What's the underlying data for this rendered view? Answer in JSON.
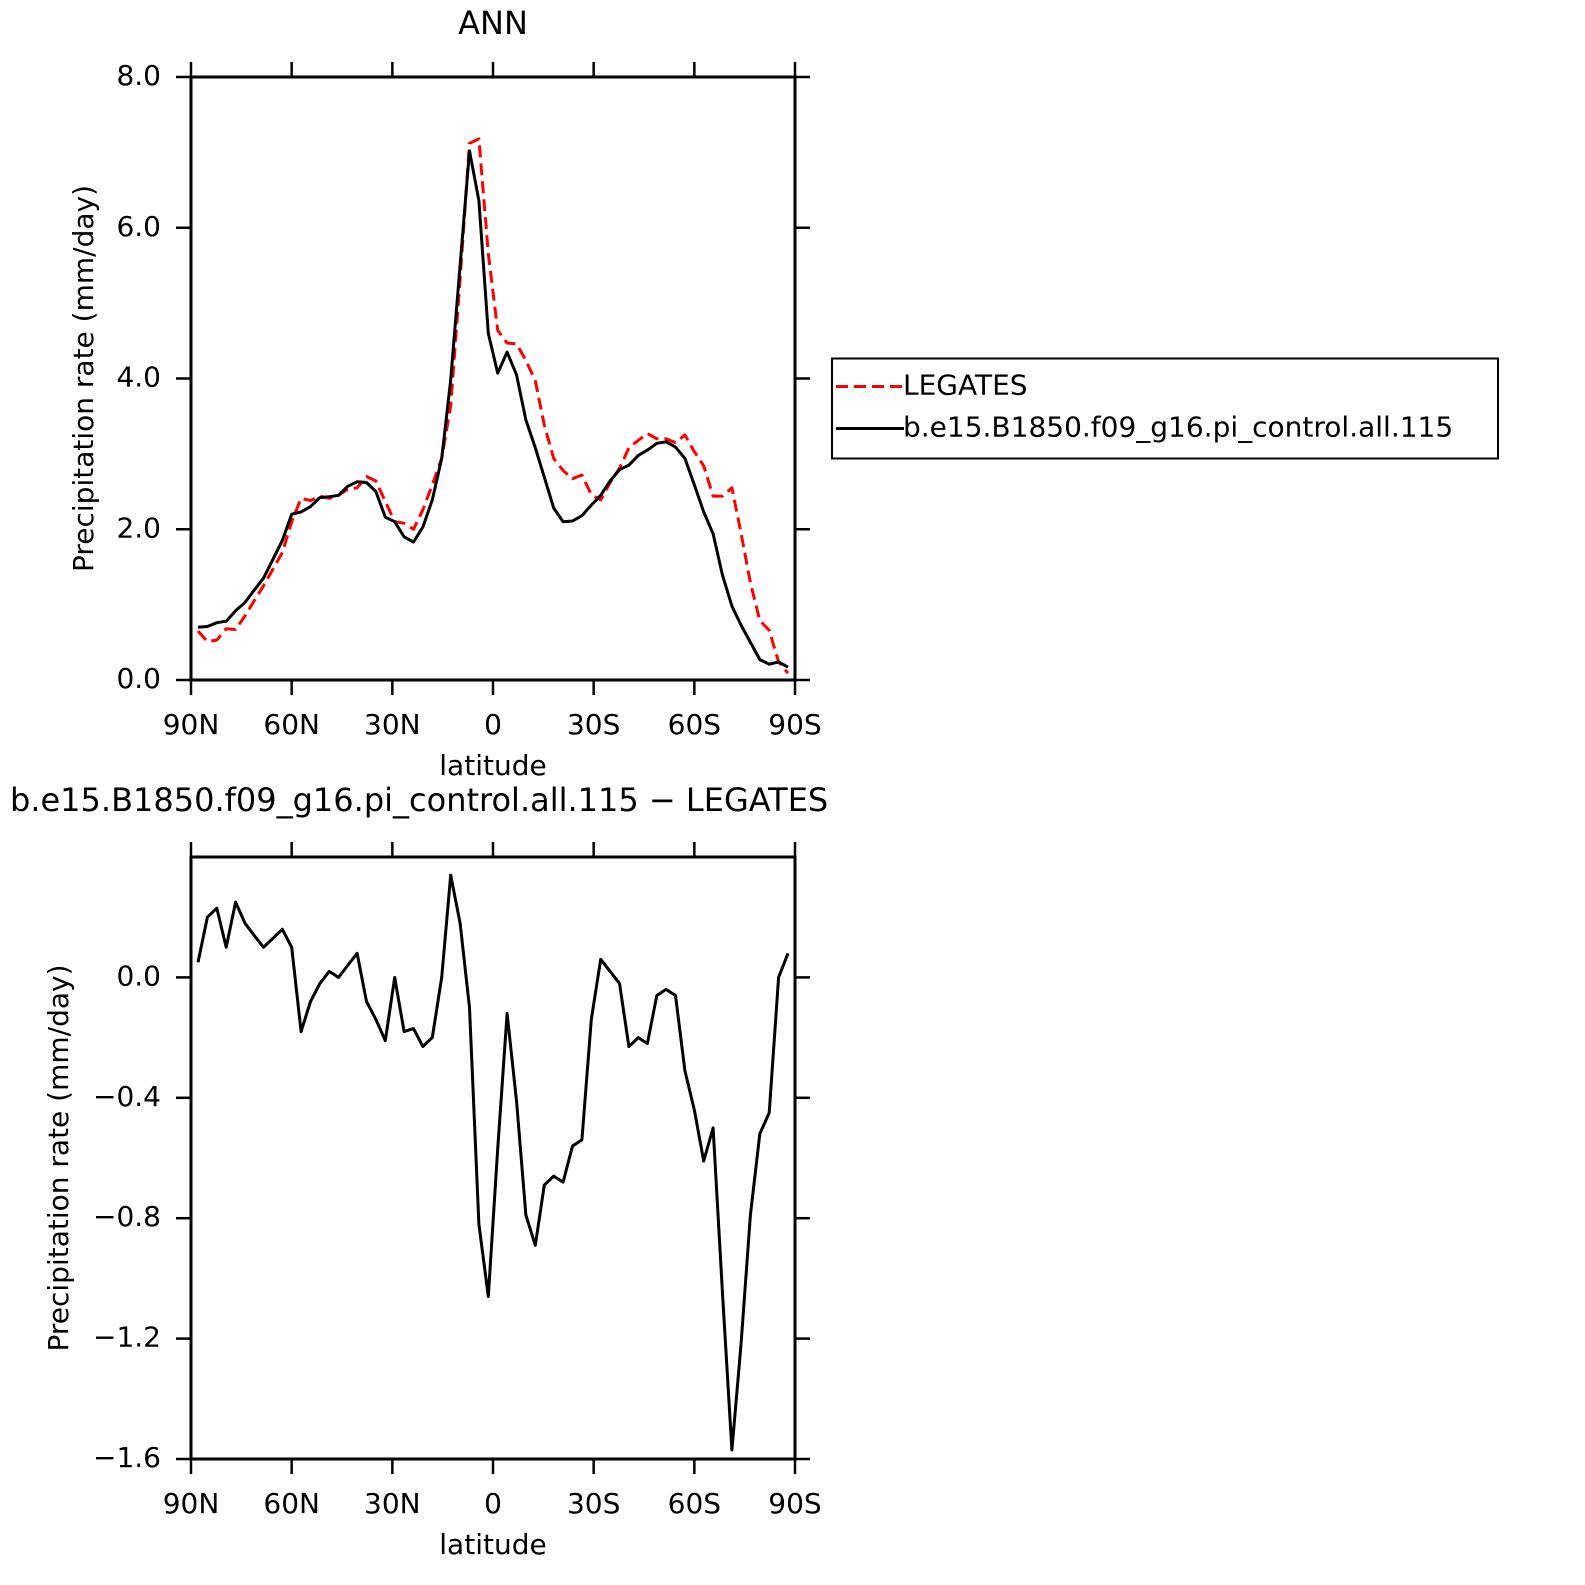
{
  "chart_data": [
    {
      "type": "line",
      "title": "ANN",
      "xlabel": "latitude",
      "ylabel": "Precipitation rate (mm/day)",
      "x": [
        87.9,
        85.1,
        82.3,
        79.5,
        76.7,
        73.9,
        71.2,
        68.4,
        65.6,
        62.8,
        60.0,
        57.2,
        54.4,
        51.6,
        48.8,
        46.0,
        43.3,
        40.5,
        37.7,
        34.9,
        32.1,
        29.3,
        26.5,
        23.7,
        20.9,
        18.1,
        15.3,
        12.6,
        9.8,
        7.0,
        4.2,
        1.4,
        -1.4,
        -4.2,
        -7.0,
        -9.8,
        -12.6,
        -15.3,
        -18.1,
        -20.9,
        -23.7,
        -26.5,
        -29.3,
        -32.1,
        -34.9,
        -37.7,
        -40.5,
        -43.3,
        -46.0,
        -48.8,
        -51.6,
        -54.4,
        -57.2,
        -60.0,
        -62.8,
        -65.6,
        -68.4,
        -71.2,
        -73.9,
        -76.7,
        -79.5,
        -82.3,
        -85.1,
        -87.9
      ],
      "series": [
        {
          "name": "LEGATES",
          "color": "#ff0000",
          "dashed": true,
          "values": [
            0.65,
            0.51,
            0.53,
            0.68,
            0.67,
            0.85,
            1.05,
            1.25,
            1.47,
            1.69,
            2.1,
            2.41,
            2.38,
            2.44,
            2.41,
            2.45,
            2.53,
            2.55,
            2.7,
            2.64,
            2.37,
            2.1,
            2.08,
            2.0,
            2.26,
            2.59,
            2.94,
            3.64,
            5.32,
            7.12,
            7.18,
            5.66,
            4.64,
            4.47,
            4.46,
            4.24,
            3.97,
            3.38,
            2.94,
            2.78,
            2.67,
            2.72,
            2.46,
            2.39,
            2.62,
            2.81,
            3.08,
            3.18,
            3.27,
            3.2,
            3.2,
            3.15,
            3.25,
            3.03,
            2.84,
            2.44,
            2.44,
            2.55,
            1.95,
            1.29,
            0.79,
            0.66,
            0.24,
            0.09
          ]
        },
        {
          "name": "b.e15.B1850.f09_g16.pi_control.all.115",
          "color": "#000000",
          "dashed": false,
          "values": [
            0.7,
            0.71,
            0.76,
            0.78,
            0.92,
            1.03,
            1.19,
            1.35,
            1.6,
            1.85,
            2.2,
            2.23,
            2.3,
            2.42,
            2.43,
            2.45,
            2.57,
            2.63,
            2.62,
            2.5,
            2.16,
            2.1,
            1.9,
            1.83,
            2.03,
            2.39,
            2.94,
            3.98,
            5.5,
            7.02,
            6.36,
            4.6,
            4.07,
            4.35,
            4.05,
            3.45,
            3.08,
            2.69,
            2.28,
            2.1,
            2.11,
            2.18,
            2.32,
            2.45,
            2.64,
            2.79,
            2.85,
            2.98,
            3.05,
            3.14,
            3.16,
            3.09,
            2.94,
            2.59,
            2.23,
            1.94,
            1.39,
            0.98,
            0.73,
            0.5,
            0.27,
            0.21,
            0.24,
            0.17
          ]
        }
      ],
      "xlim": [
        90,
        -90
      ],
      "xticks": [
        {
          "value": 90,
          "label": "90N"
        },
        {
          "value": 60,
          "label": "60N"
        },
        {
          "value": 30,
          "label": "30N"
        },
        0,
        {
          "value": -30,
          "label": "30S"
        },
        {
          "value": -60,
          "label": "60S"
        },
        {
          "value": -90,
          "label": "90S"
        }
      ],
      "ylim": [
        0,
        8
      ],
      "yticks": [
        {
          "value": 0,
          "label": "0.0"
        },
        {
          "value": 2,
          "label": "2.0"
        },
        {
          "value": 4,
          "label": "4.0"
        },
        {
          "value": 6,
          "label": "6.0"
        },
        {
          "value": 8,
          "label": "8.0"
        }
      ],
      "legend_position": "right"
    },
    {
      "type": "line",
      "title": "b.e15.B1850.f09_g16.pi_control.all.115 − LEGATES",
      "xlabel": "latitude",
      "ylabel": "Precipitation rate (mm/day)",
      "x": [
        87.9,
        85.1,
        82.3,
        79.5,
        76.7,
        73.9,
        71.2,
        68.4,
        65.6,
        62.8,
        60.0,
        57.2,
        54.4,
        51.6,
        48.8,
        46.0,
        43.3,
        40.5,
        37.7,
        34.9,
        32.1,
        29.3,
        26.5,
        23.7,
        20.9,
        18.1,
        15.3,
        12.6,
        9.8,
        7.0,
        4.2,
        1.4,
        -1.4,
        -4.2,
        -7.0,
        -9.8,
        -12.6,
        -15.3,
        -18.1,
        -20.9,
        -23.7,
        -26.5,
        -29.3,
        -32.1,
        -34.9,
        -37.7,
        -40.5,
        -43.3,
        -46.0,
        -48.8,
        -51.6,
        -54.4,
        -57.2,
        -60.0,
        -62.8,
        -65.6,
        -68.4,
        -71.2,
        -73.9,
        -76.7,
        -79.5,
        -82.3,
        -85.1,
        -87.9
      ],
      "color": "#000000",
      "values": [
        0.05,
        0.2,
        0.23,
        0.1,
        0.25,
        0.18,
        0.14,
        0.1,
        0.13,
        0.16,
        0.1,
        -0.18,
        -0.08,
        -0.02,
        0.02,
        0.0,
        0.04,
        0.08,
        -0.08,
        -0.14,
        -0.21,
        0.0,
        -0.18,
        -0.17,
        -0.23,
        -0.2,
        0.0,
        0.34,
        0.18,
        -0.1,
        -0.82,
        -1.06,
        -0.57,
        -0.12,
        -0.41,
        -0.79,
        -0.89,
        -0.69,
        -0.66,
        -0.68,
        -0.56,
        -0.54,
        -0.14,
        0.06,
        0.02,
        -0.02,
        -0.23,
        -0.2,
        -0.22,
        -0.06,
        -0.04,
        -0.06,
        -0.31,
        -0.44,
        -0.61,
        -0.5,
        -1.05,
        -1.57,
        -1.22,
        -0.79,
        -0.52,
        -0.45,
        0.0,
        0.08
      ],
      "xlim": [
        90,
        -90
      ],
      "xticks": [
        {
          "value": 90,
          "label": "90N"
        },
        {
          "value": 60,
          "label": "60N"
        },
        {
          "value": 30,
          "label": "30N"
        },
        0,
        {
          "value": -30,
          "label": "30S"
        },
        {
          "value": -60,
          "label": "60S"
        },
        {
          "value": -90,
          "label": "90S"
        }
      ],
      "ylim": [
        -1.6,
        0.4
      ],
      "yticks": [
        {
          "value": -1.6,
          "label": "−1.6"
        },
        {
          "value": -1.2,
          "label": "−1.2"
        },
        {
          "value": -0.8,
          "label": "−0.8"
        },
        {
          "value": -0.4,
          "label": "−0.4"
        },
        {
          "value": 0,
          "label": "0.0"
        }
      ]
    }
  ]
}
